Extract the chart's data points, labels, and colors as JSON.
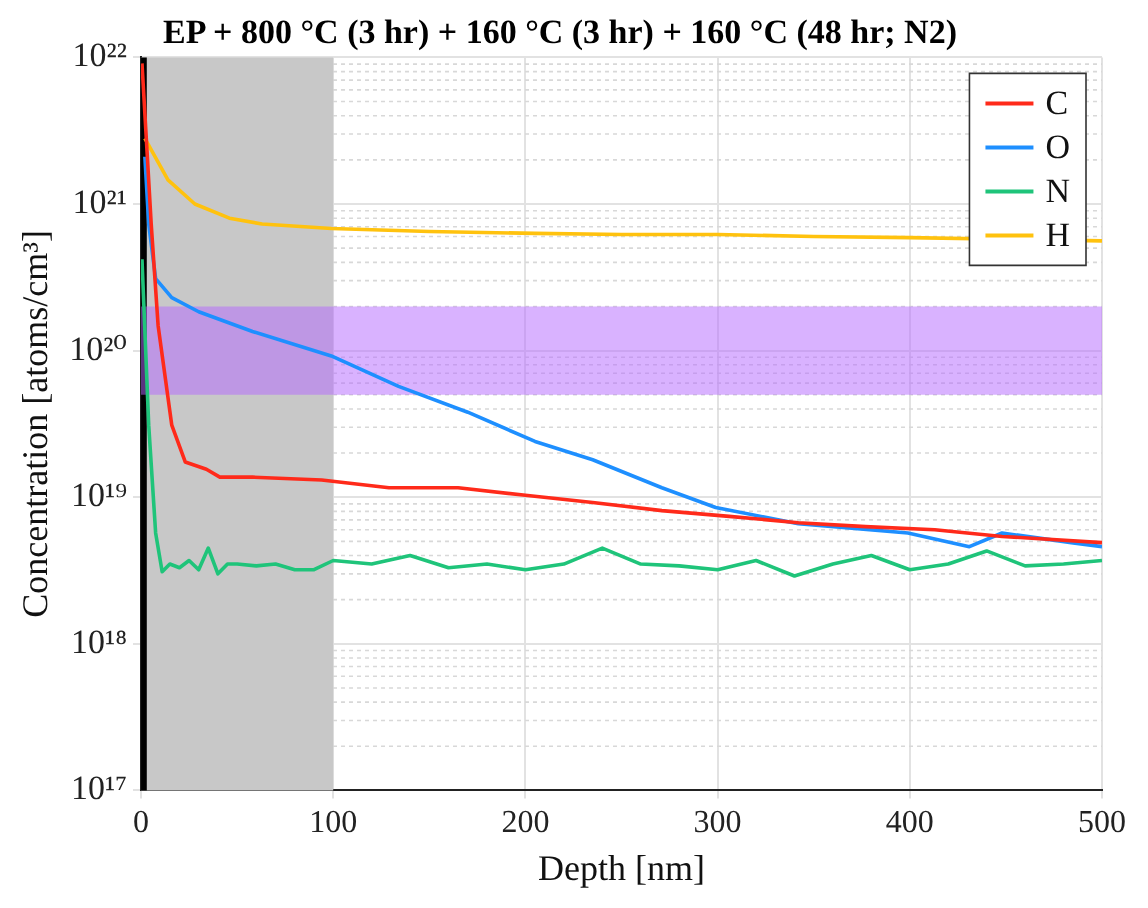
{
  "chart_data": {
    "type": "line",
    "title": "EP + 800 °C (3 hr) + 160 °C (3 hr) + 160 °C (48 hr; N2)",
    "xlabel": "Depth [nm]",
    "ylabel": "Concentration [atoms/cm³]",
    "xlim": [
      0,
      500
    ],
    "xticks": [
      0,
      100,
      200,
      300,
      400,
      500
    ],
    "ylim": [
      1e+17,
      1e+22
    ],
    "yticks": [
      {
        "value": 1e+17,
        "label": "10¹⁷"
      },
      {
        "value": 1e+18,
        "label": "10¹⁸"
      },
      {
        "value": 1e+19,
        "label": "10¹⁹"
      },
      {
        "value": 1e+20,
        "label": "10²⁰"
      },
      {
        "value": 1e+21,
        "label": "10²¹"
      },
      {
        "value": 1e+22,
        "label": "10²²"
      }
    ],
    "log": "y",
    "grid": true,
    "legend": "top right",
    "marker": "none",
    "line_style": "solid",
    "bands": [
      {
        "axis": "x",
        "from": 0,
        "to": 100,
        "color": "#c8c8c8"
      },
      {
        "axis": "x",
        "from": 0,
        "to": 3,
        "color": "#000000"
      },
      {
        "axis": "y",
        "from": 5e+19,
        "to": 2e+20,
        "color": "#b366ff"
      }
    ],
    "series": [
      {
        "name": "C",
        "color": "#ff2a1a",
        "x": [
          0.5,
          5.3,
          8.9,
          16,
          23,
          34,
          41,
          58,
          94,
          129,
          165,
          200,
          235,
          271,
          306,
          342,
          377,
          413,
          448,
          500
        ],
        "values": [
          9.1e+21,
          7.3e+20,
          1.48e+20,
          3.1e+19,
          1.74e+19,
          1.55e+19,
          1.37e+19,
          1.37e+19,
          1.31e+19,
          1.16e+19,
          1.16e+19,
          1.03e+19,
          9.2e+18,
          8.1e+18,
          7.4e+18,
          6.7e+18,
          6.3e+18,
          6e+18,
          5.4e+18,
          4.9e+18
        ]
      },
      {
        "name": "O",
        "color": "#1e8fff",
        "x": [
          2,
          4,
          7.6,
          16,
          30,
          58,
          99,
          134,
          170,
          205,
          235,
          271,
          299,
          342,
          399,
          431,
          448,
          484,
          500
        ],
        "values": [
          2.1e+21,
          7.3e+20,
          3.1e+20,
          2.3e+20,
          1.84e+20,
          1.35e+20,
          9.2e+19,
          5.7e+19,
          3.8e+19,
          2.4e+19,
          1.8e+19,
          1.16e+19,
          8.5e+18,
          6.6e+18,
          5.7e+18,
          4.6e+18,
          5.7e+18,
          4.9e+18,
          4.6e+18
        ]
      },
      {
        "name": "N",
        "color": "#1fc47a",
        "x": [
          0.5,
          4,
          7.6,
          11,
          15,
          20,
          25,
          30,
          35,
          40,
          45,
          50,
          60,
          70,
          80,
          90,
          100,
          120,
          140,
          160,
          180,
          200,
          220,
          240,
          260,
          280,
          300,
          320,
          340,
          360,
          380,
          400,
          420,
          440,
          460,
          480,
          500
        ],
        "values": [
          4.2e+20,
          3.1e+19,
          5.7e+18,
          3.1e+18,
          3.5e+18,
          3.3e+18,
          3.7e+18,
          3.2e+18,
          4.5e+18,
          3e+18,
          3.5e+18,
          3.5e+18,
          3.4e+18,
          3.5e+18,
          3.2e+18,
          3.2e+18,
          3.7e+18,
          3.5e+18,
          4e+18,
          3.3e+18,
          3.5e+18,
          3.2e+18,
          3.5e+18,
          4.5e+18,
          3.5e+18,
          3.4e+18,
          3.2e+18,
          3.7e+18,
          2.9e+18,
          3.5e+18,
          4e+18,
          3.2e+18,
          3.5e+18,
          4.3e+18,
          3.4e+18,
          3.5e+18,
          3.7e+18
        ]
      },
      {
        "name": "H",
        "color": "#ffc20e",
        "x": [
          2,
          14,
          28,
          46,
          63,
          99,
          150,
          205,
          250,
          300,
          350,
          400,
          450,
          500
        ],
        "values": [
          2.8e+21,
          1.46e+21,
          1e+21,
          8e+20,
          7.3e+20,
          6.8e+20,
          6.5e+20,
          6.3e+20,
          6.2e+20,
          6.2e+20,
          6e+20,
          5.9e+20,
          5.75e+20,
          5.6e+20
        ]
      }
    ]
  }
}
